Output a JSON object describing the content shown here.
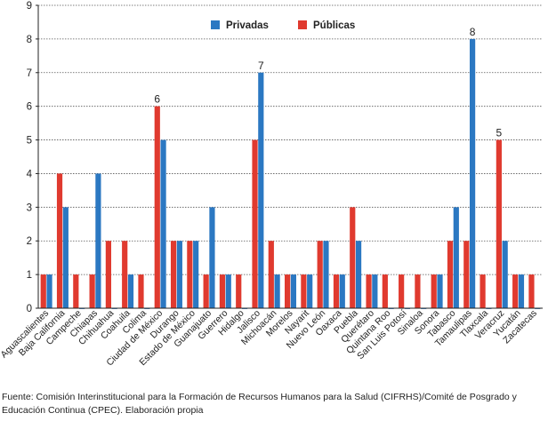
{
  "chart_data": {
    "type": "bar",
    "title": "",
    "xlabel": "",
    "ylabel": "",
    "ylim": [
      0,
      9
    ],
    "yticks": [
      "0",
      "1",
      "2",
      "3",
      "4",
      "5",
      "6",
      "7",
      "8",
      "9"
    ],
    "grid": "horizontal-dotted",
    "legend_position": "top-center",
    "categories": [
      "Aguascalientes",
      "Baja California",
      "Campeche",
      "Chiapas",
      "Chihuahua",
      "Coahuila",
      "Colima",
      "Ciudad de México",
      "Durango",
      "Estado de México",
      "Guanajuato",
      "Guerrero",
      "Hidalgo",
      "Jalisco",
      "Michoacán",
      "Morelos",
      "Nayarit",
      "Nuevo León",
      "Oaxaca",
      "Puebla",
      "Querétaro",
      "Quintana Roo",
      "San Luis Potosí",
      "Sinaloa",
      "Sonora",
      "Tabasco",
      "Tamaulipas",
      "Tlaxcala",
      "Veracruz",
      "Yucatán",
      "Zacatecas"
    ],
    "series": [
      {
        "name": "Públicas",
        "color": "#e03a2f",
        "values": [
          1,
          4,
          1,
          1,
          2,
          2,
          1,
          6,
          2,
          2,
          1,
          1,
          1,
          5,
          2,
          1,
          1,
          2,
          1,
          3,
          1,
          1,
          1,
          1,
          1,
          2,
          2,
          1,
          5,
          1,
          1
        ]
      },
      {
        "name": "Privadas",
        "color": "#2b78c2",
        "values": [
          1,
          3,
          0,
          4,
          0,
          1,
          0,
          5,
          2,
          2,
          3,
          1,
          0,
          7,
          1,
          1,
          1,
          2,
          1,
          2,
          1,
          0,
          0,
          0,
          1,
          3,
          8,
          0,
          2,
          1,
          0
        ]
      }
    ],
    "annotations": [
      {
        "category": "Ciudad de México",
        "series": "Públicas",
        "text": "6"
      },
      {
        "category": "Jalisco",
        "series": "Privadas",
        "text": "7"
      },
      {
        "category": "Tamaulipas",
        "series": "Privadas",
        "text": "8"
      },
      {
        "category": "Veracruz",
        "series": "Públicas",
        "text": "5"
      }
    ]
  },
  "legend": {
    "privadas": "Privadas",
    "publicas": "Públicas"
  },
  "source_note": "Fuente: Comisión Interinstitucional para la Formación de Recursos Humanos para la Salud (CIFRHS)/Comité de Posgrado y Educación Continua (CPEC). Elaboración propia"
}
